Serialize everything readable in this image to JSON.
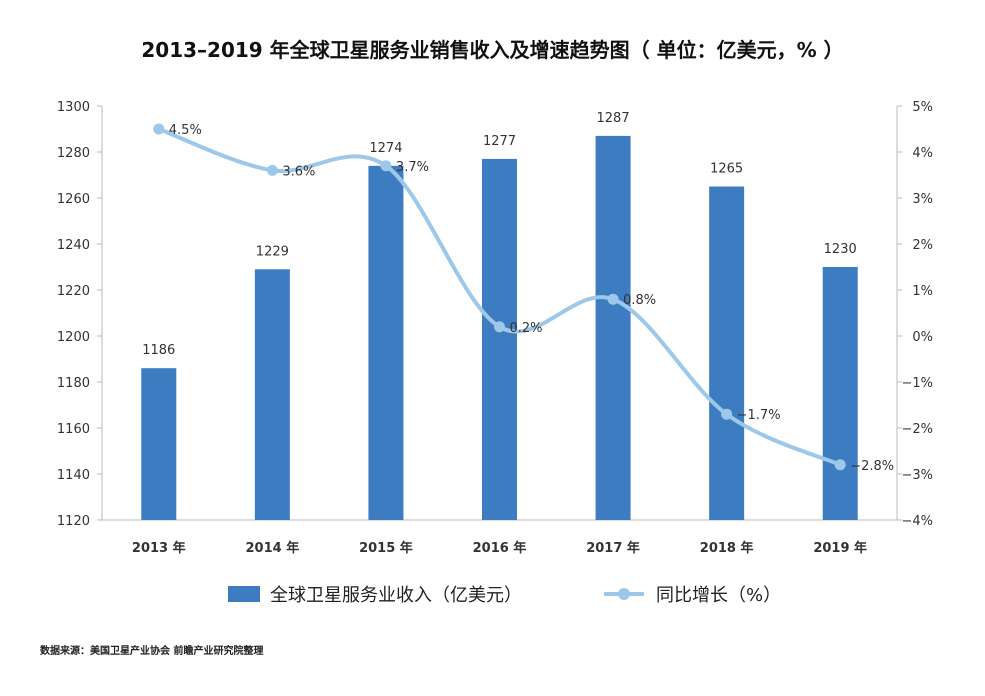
{
  "title": "2013–2019 年全球卫星服务业销售收入及增速趋势图（ 单位：亿美元，% ）",
  "source": "数据来源：美国卫星产业协会 前瞻产业研究院整理",
  "colors": {
    "bar": "#3d7cc0",
    "line": "#9ec8e9",
    "axis": "#bbbbbb"
  },
  "chart_data": {
    "type": "bar+line",
    "title": "2013–2019 年全球卫星服务业销售收入及增速趋势图（ 单位：亿美元，% ）",
    "categories": [
      "2013 年",
      "2014 年",
      "2015 年",
      "2016 年",
      "2017 年",
      "2018 年",
      "2019 年"
    ],
    "series": [
      {
        "name": "全球卫星服务业收入（亿美元）",
        "type": "bar",
        "axis": "left",
        "values": [
          1186,
          1229,
          1274,
          1277,
          1287,
          1265,
          1230
        ],
        "labels": [
          "1186",
          "1229",
          "1274",
          "1277",
          "1287",
          "1265",
          "1230"
        ]
      },
      {
        "name": "同比增长（%）",
        "type": "line",
        "axis": "right",
        "values": [
          4.5,
          3.6,
          3.7,
          0.2,
          0.8,
          -1.7,
          -2.8
        ],
        "labels": [
          "4.5%",
          "3.6%",
          "3.7%",
          "0.2%",
          "0.8%",
          "−1.7%",
          "−2.8%"
        ]
      }
    ],
    "y_left": {
      "min": 1120,
      "max": 1300,
      "step": 20,
      "ticks": [
        "1300",
        "1280",
        "1260",
        "1240",
        "1220",
        "1200",
        "1180",
        "1160",
        "1140",
        "1120"
      ]
    },
    "y_right": {
      "min": -4,
      "max": 5,
      "step": 1,
      "ticks": [
        "5%",
        "4%",
        "3%",
        "2%",
        "1%",
        "0%",
        "−1%",
        "−2%",
        "−3%",
        "−4%"
      ]
    },
    "legend": {
      "placement": "bottom-center"
    }
  }
}
